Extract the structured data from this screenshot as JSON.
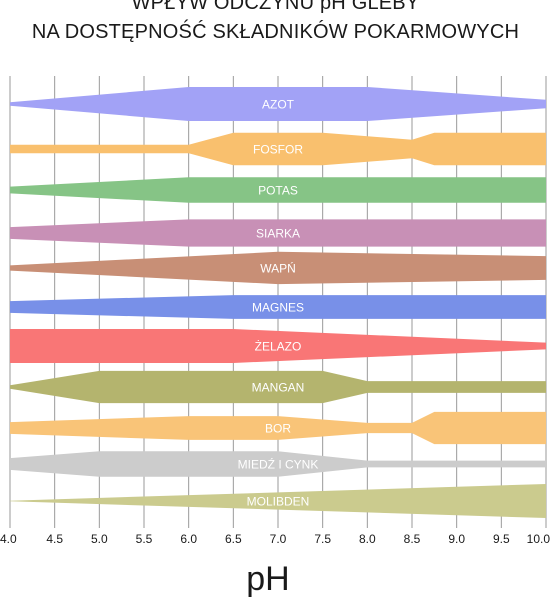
{
  "chart_data": {
    "type": "area",
    "title": "WPŁYW ODCZYNU pH GLEBY",
    "subtitle": "NA DOSTĘPNOŚĆ SKŁADNIKÓW POKARMOWYCH",
    "xlabel": "pH",
    "xlim": [
      4.0,
      10.0
    ],
    "ticks": [
      "4.0",
      "4.5",
      "5.0",
      "5.5",
      "6.0",
      "6.5",
      "7.0",
      "7.5",
      "8.0",
      "8.5",
      "9.0",
      "9.5",
      "10.0"
    ],
    "grid": true,
    "series": [
      {
        "name": "AZOT",
        "color": "#a2a2f6",
        "points": [
          [
            4.0,
            0.1
          ],
          [
            6.0,
            1.0
          ],
          [
            8.0,
            1.0
          ],
          [
            10.0,
            0.25
          ]
        ]
      },
      {
        "name": "FOSFOR",
        "color": "#f9c06e",
        "points": [
          [
            4.0,
            0.25
          ],
          [
            6.0,
            0.25
          ],
          [
            6.5,
            0.95
          ],
          [
            7.5,
            0.95
          ],
          [
            8.5,
            0.55
          ],
          [
            8.75,
            0.95
          ],
          [
            10.0,
            0.95
          ]
        ]
      },
      {
        "name": "POTAS",
        "color": "#86c486",
        "points": [
          [
            4.0,
            0.2
          ],
          [
            6.0,
            0.75
          ],
          [
            10.0,
            0.75
          ]
        ]
      },
      {
        "name": "SIARKA",
        "color": "#c890b6",
        "points": [
          [
            4.0,
            0.35
          ],
          [
            6.0,
            0.8
          ],
          [
            10.0,
            0.8
          ]
        ]
      },
      {
        "name": "WAPŃ",
        "color": "#c88f76",
        "points": [
          [
            4.0,
            0.15
          ],
          [
            7.0,
            0.95
          ],
          [
            10.0,
            0.7
          ]
        ]
      },
      {
        "name": "MAGNES",
        "color": "#7890e8",
        "points": [
          [
            4.0,
            0.35
          ],
          [
            6.5,
            0.7
          ],
          [
            10.0,
            0.7
          ]
        ]
      },
      {
        "name": "ŻELAZO",
        "color": "#f97676",
        "points": [
          [
            4.0,
            1.0
          ],
          [
            6.5,
            1.0
          ],
          [
            10.0,
            0.2
          ]
        ]
      },
      {
        "name": "MANGAN",
        "color": "#b4b46e",
        "points": [
          [
            4.0,
            0.1
          ],
          [
            5.0,
            0.95
          ],
          [
            7.5,
            0.95
          ],
          [
            8.0,
            0.35
          ],
          [
            10.0,
            0.35
          ]
        ]
      },
      {
        "name": "BOR",
        "color": "#f9c478",
        "points": [
          [
            4.0,
            0.35
          ],
          [
            6.0,
            0.7
          ],
          [
            7.0,
            0.7
          ],
          [
            8.0,
            0.3
          ],
          [
            8.5,
            0.3
          ],
          [
            8.75,
            0.95
          ],
          [
            10.0,
            0.95
          ]
        ]
      },
      {
        "name": "MIEDŹ I CYNK",
        "color": "#cccccc",
        "points": [
          [
            4.0,
            0.35
          ],
          [
            5.0,
            0.75
          ],
          [
            7.0,
            0.75
          ],
          [
            8.0,
            0.2
          ],
          [
            10.0,
            0.2
          ]
        ]
      },
      {
        "name": "MOLIBDEN",
        "color": "#cbcb8e",
        "points": [
          [
            4.0,
            0.02
          ],
          [
            10.0,
            1.0
          ]
        ]
      }
    ]
  }
}
